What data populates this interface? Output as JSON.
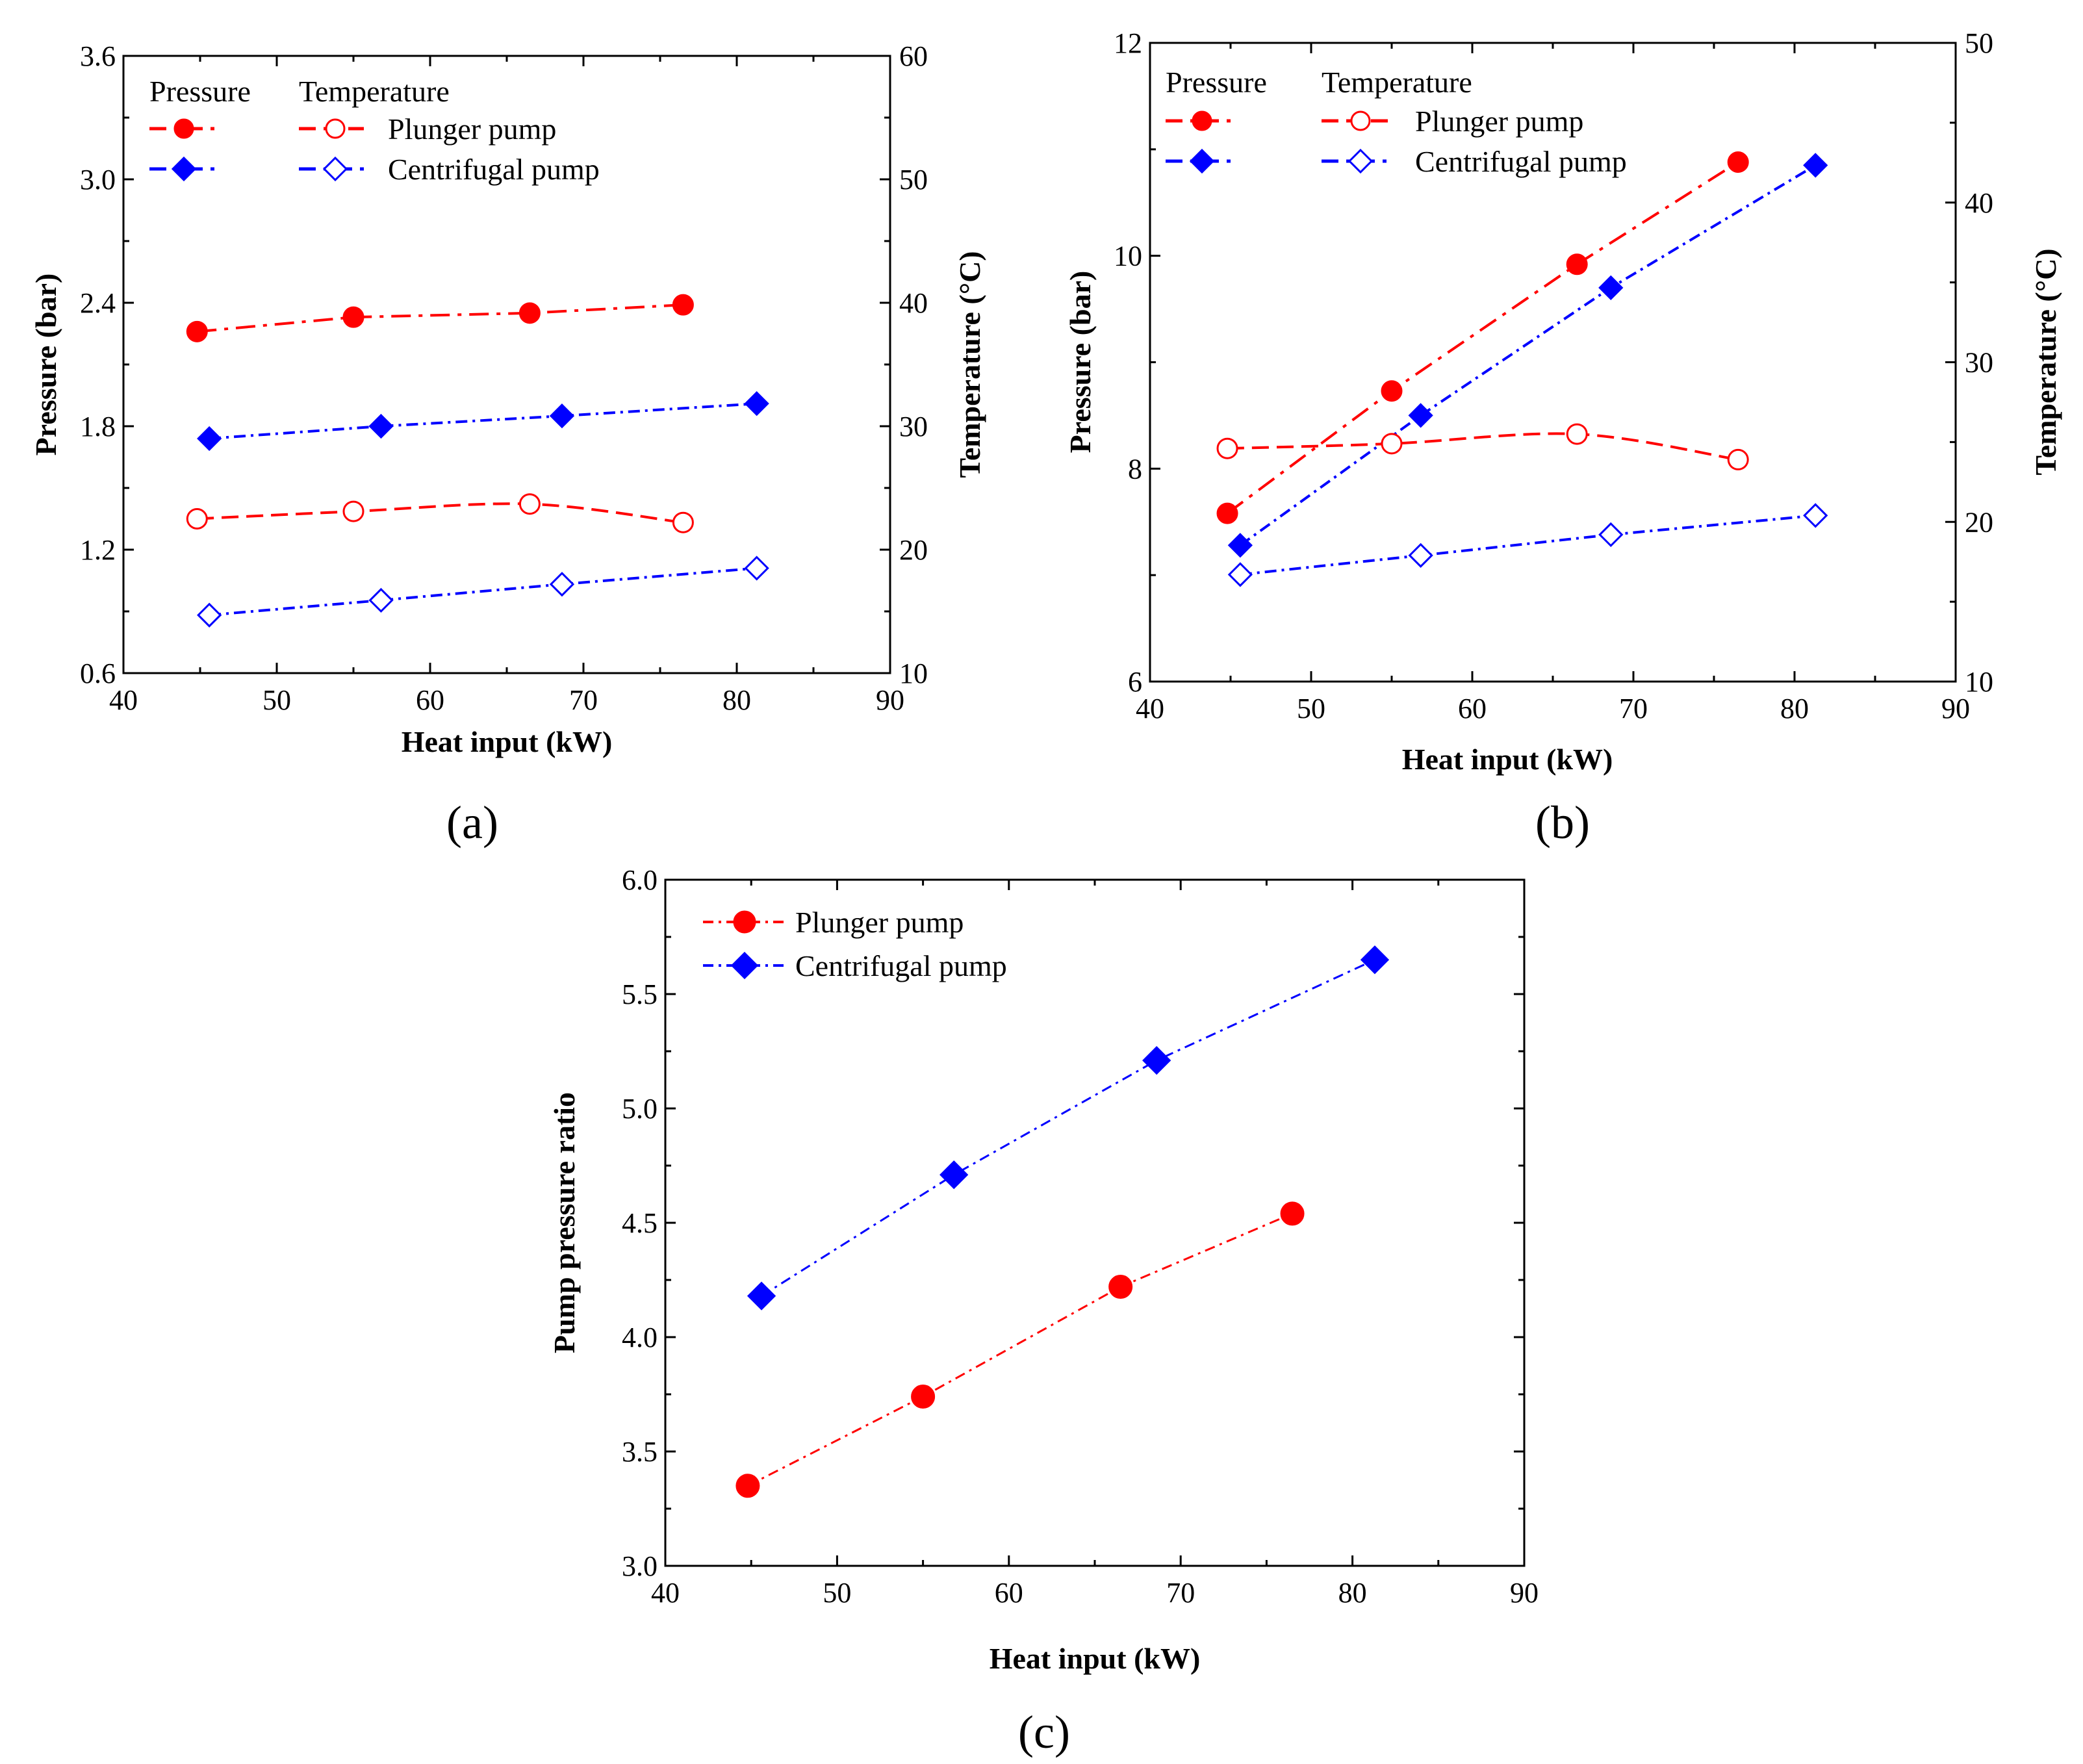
{
  "colors": {
    "plunger": "#ff0000",
    "centrifugal": "#0000ff",
    "axis": "#000000"
  },
  "chart_data": [
    {
      "id": "a",
      "type": "line",
      "panel_label": "(a)",
      "xlabel": "Heat input (kW)",
      "ylabel": "Pressure (bar)",
      "y2label": "Temperature (°C)",
      "xlim": [
        40,
        90
      ],
      "ylim": [
        0.6,
        3.6
      ],
      "y2lim": [
        10,
        60
      ],
      "xticks": [
        "40",
        "50",
        "60",
        "70",
        "80",
        "90"
      ],
      "yticks": [
        "0.6",
        "1.2",
        "1.8",
        "2.4",
        "3.0",
        "3.6"
      ],
      "y2ticks": [
        "10",
        "20",
        "30",
        "40",
        "50",
        "60"
      ],
      "legend": {
        "pressure_header": "Pressure",
        "temperature_header": "Temperature",
        "plunger": "Plunger pump",
        "centrifugal": "Centrifugal pump"
      },
      "series": [
        {
          "name": "Plunger pump pressure",
          "axis": "left",
          "pump": "plunger",
          "marker": "circle",
          "filled": true,
          "smooth": false,
          "x": [
            44.8,
            55.0,
            66.5,
            76.5
          ],
          "values": [
            2.26,
            2.33,
            2.35,
            2.39
          ]
        },
        {
          "name": "Centrifugal pump pressure",
          "axis": "left",
          "pump": "centrifugal",
          "marker": "diamond",
          "filled": true,
          "smooth": false,
          "x": [
            45.6,
            56.8,
            68.6,
            81.3
          ],
          "values": [
            1.74,
            1.8,
            1.85,
            1.91
          ]
        },
        {
          "name": "Plunger pump temperature",
          "axis": "right",
          "pump": "plunger",
          "marker": "circle",
          "filled": false,
          "smooth": true,
          "x": [
            44.8,
            55.0,
            66.5,
            76.5
          ],
          "values": [
            22.5,
            23.1,
            23.7,
            22.2
          ]
        },
        {
          "name": "Centrifugal pump temperature",
          "axis": "right",
          "pump": "centrifugal",
          "marker": "diamond",
          "filled": false,
          "smooth": false,
          "x": [
            45.6,
            56.8,
            68.6,
            81.3
          ],
          "values": [
            14.7,
            15.9,
            17.2,
            18.5
          ]
        }
      ]
    },
    {
      "id": "b",
      "type": "line",
      "panel_label": "(b)",
      "xlabel": "Heat input (kW)",
      "ylabel": "Pressure (bar)",
      "y2label": "Temperature (°C)",
      "xlim": [
        40,
        90
      ],
      "ylim": [
        6,
        12
      ],
      "y2lim": [
        10,
        50
      ],
      "xticks": [
        "40",
        "50",
        "60",
        "70",
        "80",
        "90"
      ],
      "yticks": [
        "6",
        "8",
        "10",
        "12"
      ],
      "y2ticks": [
        "10",
        "20",
        "30",
        "40",
        "50"
      ],
      "legend": {
        "pressure_header": "Pressure",
        "temperature_header": "Temperature",
        "plunger": "Plunger pump",
        "centrifugal": "Centrifugal pump"
      },
      "series": [
        {
          "name": "Plunger pump pressure",
          "axis": "left",
          "pump": "plunger",
          "marker": "circle",
          "filled": true,
          "smooth": false,
          "x": [
            44.8,
            55.0,
            66.5,
            76.5
          ],
          "values": [
            7.58,
            8.73,
            9.92,
            10.88
          ]
        },
        {
          "name": "Centrifugal pump pressure",
          "axis": "left",
          "pump": "centrifugal",
          "marker": "diamond",
          "filled": true,
          "smooth": false,
          "x": [
            45.6,
            56.8,
            68.6,
            81.3
          ],
          "values": [
            7.28,
            8.5,
            9.7,
            10.85
          ]
        },
        {
          "name": "Plunger pump temperature",
          "axis": "right",
          "pump": "plunger",
          "marker": "circle",
          "filled": false,
          "smooth": true,
          "x": [
            44.8,
            55.0,
            66.5,
            76.5
          ],
          "values": [
            24.6,
            24.9,
            25.5,
            23.9
          ]
        },
        {
          "name": "Centrifugal pump temperature",
          "axis": "right",
          "pump": "centrifugal",
          "marker": "diamond",
          "filled": false,
          "smooth": false,
          "x": [
            45.6,
            56.8,
            68.6,
            81.3
          ],
          "values": [
            16.7,
            17.9,
            19.2,
            20.4
          ]
        }
      ]
    },
    {
      "id": "c",
      "type": "line",
      "panel_label": "(c)",
      "xlabel": "Heat input (kW)",
      "ylabel": "Pump pressure ratio",
      "xlim": [
        40,
        90
      ],
      "ylim": [
        3.0,
        6.0
      ],
      "xticks": [
        "40",
        "50",
        "60",
        "70",
        "80",
        "90"
      ],
      "yticks": [
        "3.0",
        "3.5",
        "4.0",
        "4.5",
        "5.0",
        "5.5",
        "6.0"
      ],
      "legend": {
        "plunger": "Plunger pump",
        "centrifugal": "Centrifugal pump"
      },
      "series": [
        {
          "name": "Plunger pump",
          "axis": "left",
          "pump": "plunger",
          "marker": "circle",
          "filled": true,
          "smooth": false,
          "x": [
            44.8,
            55.0,
            66.5,
            76.5
          ],
          "values": [
            3.35,
            3.74,
            4.22,
            4.54
          ]
        },
        {
          "name": "Centrifugal pump",
          "axis": "left",
          "pump": "centrifugal",
          "marker": "diamond",
          "filled": true,
          "smooth": false,
          "x": [
            45.6,
            56.8,
            68.6,
            81.3
          ],
          "values": [
            4.18,
            4.71,
            5.21,
            5.65
          ]
        }
      ]
    }
  ]
}
